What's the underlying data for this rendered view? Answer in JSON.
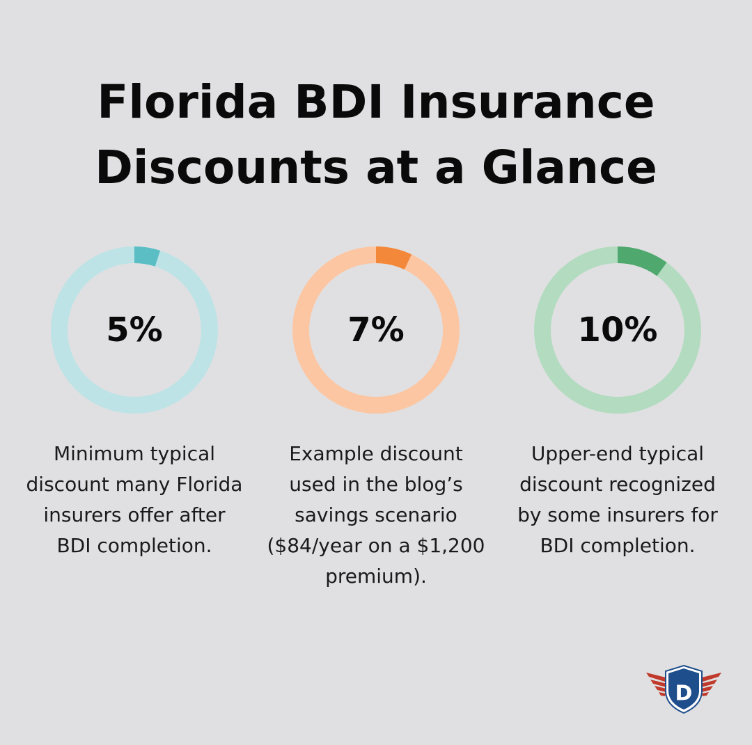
{
  "title": {
    "line1": "Florida BDI Insurance",
    "line2": "Discounts at a Glance"
  },
  "chart_data": {
    "type": "pie",
    "variant": "donut",
    "items": [
      {
        "label": "5%",
        "value": 5,
        "description": "Minimum typical discount many Florida insurers offer after BDI completion.",
        "color_fill": "#5bbec4",
        "color_track": "#bde3e6"
      },
      {
        "label": "7%",
        "value": 7,
        "description": "Example discount used in the blog’s savings scenario ($84/year on a $1,200 premium).",
        "color_fill": "#f4883a",
        "color_track": "#fcc6a2"
      },
      {
        "label": "10%",
        "value": 10,
        "description": "Upper-end typical discount recognized by some insurers for BDI completion.",
        "color_fill": "#4fa86e",
        "color_track": "#b2dbbf"
      }
    ]
  },
  "logo": {
    "letter": "D",
    "wing_color": "#c0392b",
    "shield_color": "#1f4e8c"
  }
}
